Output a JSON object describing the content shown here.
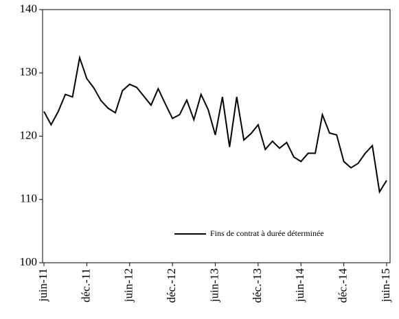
{
  "chart_data": {
    "type": "line",
    "categories": [
      "juin-11",
      null,
      null,
      null,
      null,
      null,
      "déc.-11",
      null,
      null,
      null,
      null,
      null,
      "juin-12",
      null,
      null,
      null,
      null,
      null,
      "déc.-12",
      null,
      null,
      null,
      null,
      null,
      "juin-13",
      null,
      null,
      null,
      null,
      null,
      "déc.-13",
      null,
      null,
      null,
      null,
      null,
      "juin-14",
      null,
      null,
      null,
      null,
      null,
      "déc.-14",
      null,
      null,
      null,
      null,
      null,
      "juin-15"
    ],
    "series": [
      {
        "name": "Fins de contrat à durée déterminée",
        "color": "#000000",
        "values": [
          123.9,
          121.8,
          123.9,
          126.6,
          126.2,
          132.4,
          129.1,
          127.6,
          125.6,
          124.4,
          123.7,
          127.2,
          128.2,
          127.7,
          126.3,
          124.9,
          127.5,
          125.1,
          122.8,
          123.4,
          125.7,
          122.6,
          126.6,
          124.2,
          120.2,
          126.2,
          118.3,
          126.2,
          119.4,
          120.4,
          121.8,
          117.9,
          119.2,
          118.1,
          119.0,
          116.7,
          116.0,
          117.3,
          117.3,
          123.4,
          120.5,
          120.2,
          116.0,
          115.0,
          115.7,
          117.3,
          118.5,
          111.2,
          113.0
        ]
      }
    ],
    "ylim": [
      100,
      140
    ],
    "yticks": [
      100,
      110,
      120,
      130,
      140
    ],
    "legend": "lower-right"
  }
}
